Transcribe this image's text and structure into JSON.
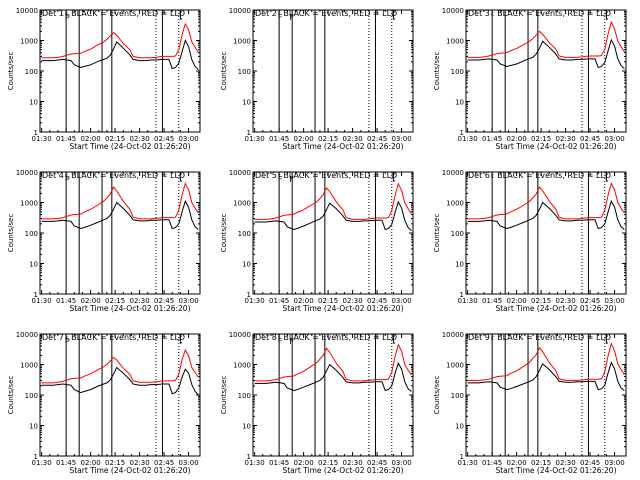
{
  "figure": {
    "ylabel": "Counts/sec",
    "xlabel": "Start Time (24-Oct-02 01:26:20)",
    "title_suffix": "BLACK = Events, RED = LLD"
  },
  "chart_data": [
    {
      "type": "line",
      "panel": 1,
      "title_prefix": "Det 1",
      "mode_char": "c",
      "segments": [
        "P"
      ],
      "x_ticks": [
        "01:30",
        "01:45",
        "02:00",
        "02:15",
        "02:30",
        "02:45",
        "03:00"
      ],
      "y_ticks": [
        "1",
        "10",
        "100",
        "1000",
        "10000"
      ],
      "ylim": [
        1,
        10000
      ],
      "ylog": true,
      "xlim_minutes": [
        -1,
        97
      ],
      "x_minutes": [
        0,
        7,
        10,
        13,
        18,
        20,
        24,
        26,
        30,
        34,
        38,
        40,
        42,
        44,
        46,
        50,
        54,
        56,
        60,
        64,
        67,
        70,
        74,
        78,
        80,
        82,
        84,
        86,
        88,
        90,
        92,
        94,
        96
      ],
      "series": [
        {
          "name": "Events",
          "color": "#000000",
          "values": [
            220,
            220,
            230,
            240,
            220,
            160,
            130,
            140,
            160,
            200,
            240,
            260,
            330,
            520,
            900,
            560,
            340,
            240,
            220,
            220,
            230,
            230,
            240,
            240,
            120,
            130,
            180,
            420,
            1000,
            620,
            240,
            140,
            110
          ]
        },
        {
          "name": "LLD",
          "color": "#ff0000",
          "values": [
            270,
            270,
            280,
            300,
            360,
            370,
            380,
            430,
            520,
            700,
            900,
            1100,
            1400,
            1800,
            1500,
            800,
            500,
            300,
            270,
            270,
            270,
            280,
            300,
            300,
            300,
            310,
            500,
            1500,
            3500,
            2200,
            900,
            600,
            400
          ]
        }
      ]
    },
    {
      "type": "line",
      "panel": 2,
      "title_prefix": "Det 2",
      "mode_char": "r",
      "segments": [
        "F",
        "F"
      ],
      "x_ticks": [
        "01:30",
        "01:45",
        "02:00",
        "02:15",
        "02:30",
        "02:45",
        "03:00"
      ],
      "y_ticks": [
        "1",
        "10",
        "100",
        "1000",
        "10000"
      ],
      "ylim": [
        1,
        10000
      ],
      "ylog": true,
      "xlim_minutes": [
        -1,
        97
      ],
      "x_minutes": [],
      "series": []
    },
    {
      "type": "line",
      "panel": 3,
      "title_prefix": "Det 3",
      "mode_char": "c",
      "segments": [],
      "x_ticks": [
        "01:30",
        "01:45",
        "02:00",
        "02:15",
        "02:30",
        "02:45",
        "03:00"
      ],
      "y_ticks": [
        "1",
        "10",
        "100",
        "1000",
        "10000"
      ],
      "ylim": [
        1,
        10000
      ],
      "ylog": true,
      "xlim_minutes": [
        -1,
        97
      ],
      "x_minutes": [
        0,
        7,
        10,
        13,
        18,
        20,
        24,
        26,
        30,
        34,
        38,
        40,
        42,
        44,
        46,
        50,
        54,
        56,
        60,
        64,
        67,
        70,
        74,
        78,
        80,
        82,
        84,
        86,
        88,
        90,
        92,
        94,
        96
      ],
      "series": [
        {
          "name": "Events",
          "color": "#000000",
          "values": [
            230,
            230,
            240,
            250,
            230,
            170,
            140,
            150,
            170,
            210,
            260,
            280,
            360,
            560,
            950,
            600,
            360,
            250,
            230,
            230,
            240,
            240,
            250,
            250,
            130,
            140,
            190,
            450,
            1050,
            650,
            250,
            150,
            120
          ]
        },
        {
          "name": "LLD",
          "color": "#ff0000",
          "values": [
            280,
            280,
            290,
            310,
            370,
            380,
            400,
            450,
            550,
            720,
            950,
            1150,
            1500,
            2000,
            1600,
            850,
            520,
            310,
            280,
            280,
            280,
            290,
            310,
            310,
            310,
            320,
            520,
            1600,
            4000,
            2400,
            950,
            620,
            420
          ]
        }
      ]
    },
    {
      "type": "line",
      "panel": 4,
      "title_prefix": "Det 4",
      "mode_char": "c",
      "segments": [
        "P"
      ],
      "x_ticks": [
        "01:30",
        "01:45",
        "02:00",
        "02:15",
        "02:30",
        "02:45",
        "03:00"
      ],
      "y_ticks": [
        "1",
        "10",
        "100",
        "1000",
        "10000"
      ],
      "ylim": [
        1,
        10000
      ],
      "ylog": true,
      "xlim_minutes": [
        -1,
        97
      ],
      "x_minutes": [
        0,
        7,
        10,
        13,
        18,
        20,
        24,
        26,
        30,
        34,
        38,
        40,
        42,
        44,
        46,
        50,
        54,
        56,
        60,
        64,
        67,
        70,
        74,
        78,
        80,
        82,
        84,
        86,
        88,
        90,
        92,
        94,
        96
      ],
      "series": [
        {
          "name": "Events",
          "color": "#000000",
          "values": [
            240,
            240,
            250,
            260,
            240,
            170,
            140,
            150,
            180,
            220,
            270,
            300,
            380,
            600,
            1000,
            640,
            380,
            270,
            250,
            250,
            260,
            260,
            270,
            270,
            140,
            150,
            200,
            480,
            1100,
            700,
            270,
            160,
            130
          ]
        },
        {
          "name": "LLD",
          "color": "#ff0000",
          "values": [
            290,
            290,
            300,
            320,
            390,
            400,
            420,
            480,
            600,
            800,
            1100,
            1400,
            1900,
            3200,
            2400,
            1100,
            600,
            330,
            290,
            290,
            290,
            300,
            320,
            320,
            320,
            330,
            560,
            1700,
            4200,
            2600,
            1000,
            650,
            450
          ]
        }
      ]
    },
    {
      "type": "line",
      "panel": 5,
      "title_prefix": "Det 5",
      "mode_char": "r",
      "segments": [
        "F",
        "F"
      ],
      "x_ticks": [
        "01:30",
        "01:45",
        "02:00",
        "02:15",
        "02:30",
        "02:45",
        "03:00"
      ],
      "y_ticks": [
        "1",
        "10",
        "100",
        "1000",
        "10000"
      ],
      "ylim": [
        1,
        10000
      ],
      "ylog": true,
      "xlim_minutes": [
        -1,
        97
      ],
      "x_minutes": [
        0,
        7,
        10,
        13,
        18,
        20,
        24,
        26,
        30,
        34,
        38,
        40,
        42,
        44,
        46,
        50,
        54,
        56,
        60,
        64,
        67,
        70,
        74,
        78,
        80,
        82,
        84,
        86,
        88,
        90,
        92,
        94,
        96
      ],
      "series": [
        {
          "name": "Events",
          "color": "#000000",
          "values": [
            230,
            230,
            240,
            250,
            230,
            160,
            130,
            140,
            170,
            210,
            260,
            290,
            360,
            580,
            950,
            620,
            370,
            260,
            240,
            240,
            250,
            250,
            260,
            260,
            130,
            140,
            190,
            460,
            1050,
            660,
            260,
            150,
            120
          ]
        },
        {
          "name": "LLD",
          "color": "#ff0000",
          "values": [
            280,
            280,
            290,
            310,
            380,
            390,
            410,
            470,
            580,
            780,
            1050,
            1350,
            1800,
            3000,
            2300,
            1050,
            580,
            320,
            280,
            280,
            280,
            290,
            310,
            310,
            310,
            320,
            540,
            1650,
            4100,
            2500,
            980,
            630,
            430
          ]
        }
      ]
    },
    {
      "type": "line",
      "panel": 6,
      "title_prefix": "Det 6",
      "mode_char": "c",
      "segments": [],
      "x_ticks": [
        "01:30",
        "01:45",
        "02:00",
        "02:15",
        "02:30",
        "02:45",
        "03:00"
      ],
      "y_ticks": [
        "1",
        "10",
        "100",
        "1000",
        "10000"
      ],
      "ylim": [
        1,
        10000
      ],
      "ylog": true,
      "xlim_minutes": [
        -1,
        97
      ],
      "x_minutes": [
        0,
        7,
        10,
        13,
        18,
        20,
        24,
        26,
        30,
        34,
        38,
        40,
        42,
        44,
        46,
        50,
        54,
        56,
        60,
        64,
        67,
        70,
        74,
        78,
        80,
        82,
        84,
        86,
        88,
        90,
        92,
        94,
        96
      ],
      "series": [
        {
          "name": "Events",
          "color": "#000000",
          "values": [
            240,
            240,
            250,
            260,
            240,
            170,
            140,
            150,
            180,
            220,
            270,
            300,
            380,
            600,
            1000,
            640,
            380,
            270,
            250,
            250,
            260,
            260,
            270,
            270,
            140,
            150,
            200,
            480,
            1100,
            700,
            270,
            160,
            130
          ]
        },
        {
          "name": "LLD",
          "color": "#ff0000",
          "values": [
            290,
            290,
            300,
            320,
            390,
            400,
            420,
            480,
            600,
            800,
            1100,
            1400,
            1900,
            3200,
            2400,
            1100,
            600,
            330,
            290,
            290,
            290,
            300,
            320,
            320,
            320,
            330,
            560,
            1700,
            4200,
            2600,
            1000,
            650,
            450
          ]
        }
      ]
    },
    {
      "type": "line",
      "panel": 7,
      "title_prefix": "Det 7",
      "mode_char": "c",
      "segments": [
        "P"
      ],
      "x_ticks": [
        "01:30",
        "01:45",
        "02:00",
        "02:15",
        "02:30",
        "02:45",
        "03:00"
      ],
      "y_ticks": [
        "1",
        "10",
        "100",
        "1000",
        "10000"
      ],
      "ylim": [
        1,
        10000
      ],
      "ylog": true,
      "xlim_minutes": [
        -1,
        97
      ],
      "x_minutes": [
        0,
        7,
        10,
        13,
        18,
        20,
        24,
        26,
        30,
        34,
        38,
        40,
        42,
        44,
        46,
        50,
        54,
        56,
        60,
        64,
        67,
        70,
        74,
        78,
        80,
        82,
        84,
        86,
        88,
        90,
        92,
        94,
        96
      ],
      "series": [
        {
          "name": "Events",
          "color": "#000000",
          "values": [
            210,
            210,
            220,
            230,
            210,
            150,
            120,
            130,
            150,
            190,
            230,
            250,
            310,
            480,
            800,
            520,
            320,
            230,
            210,
            210,
            220,
            220,
            230,
            230,
            110,
            120,
            170,
            380,
            700,
            520,
            220,
            130,
            100
          ]
        },
        {
          "name": "LLD",
          "color": "#ff0000",
          "values": [
            250,
            250,
            260,
            280,
            340,
            350,
            360,
            410,
            500,
            650,
            850,
            1000,
            1300,
            1700,
            1400,
            750,
            480,
            290,
            260,
            260,
            260,
            270,
            290,
            290,
            290,
            300,
            480,
            1400,
            3000,
            1900,
            800,
            550,
            380
          ]
        }
      ]
    },
    {
      "type": "line",
      "panel": 8,
      "title_prefix": "Det 8",
      "mode_char": "r",
      "segments": [
        "F",
        "F"
      ],
      "x_ticks": [
        "01:30",
        "01:45",
        "02:00",
        "02:15",
        "02:30",
        "02:45",
        "03:00"
      ],
      "y_ticks": [
        "1",
        "10",
        "100",
        "1000",
        "10000"
      ],
      "ylim": [
        1,
        10000
      ],
      "ylog": true,
      "xlim_minutes": [
        -1,
        97
      ],
      "x_minutes": [
        0,
        7,
        10,
        13,
        18,
        20,
        24,
        26,
        30,
        34,
        38,
        40,
        42,
        44,
        46,
        50,
        54,
        56,
        60,
        64,
        67,
        70,
        74,
        78,
        80,
        82,
        84,
        86,
        88,
        90,
        92,
        94,
        96
      ],
      "series": [
        {
          "name": "Events",
          "color": "#000000",
          "values": [
            240,
            240,
            250,
            260,
            240,
            170,
            140,
            150,
            180,
            220,
            270,
            300,
            380,
            620,
            1000,
            640,
            380,
            270,
            250,
            250,
            260,
            260,
            270,
            270,
            140,
            150,
            200,
            500,
            1100,
            700,
            270,
            160,
            130
          ]
        },
        {
          "name": "LLD",
          "color": "#ff0000",
          "values": [
            290,
            290,
            300,
            320,
            390,
            400,
            420,
            480,
            600,
            820,
            1150,
            1500,
            2000,
            3400,
            2500,
            1100,
            600,
            330,
            290,
            290,
            290,
            300,
            320,
            320,
            320,
            330,
            560,
            1800,
            4500,
            2700,
            1000,
            650,
            450
          ]
        }
      ]
    },
    {
      "type": "line",
      "panel": 9,
      "title_prefix": "Det 9",
      "mode_char": "c",
      "segments": [],
      "x_ticks": [
        "01:30",
        "01:45",
        "02:00",
        "02:15",
        "02:30",
        "02:45",
        "03:00"
      ],
      "y_ticks": [
        "1",
        "10",
        "100",
        "1000",
        "10000"
      ],
      "ylim": [
        1,
        10000
      ],
      "ylog": true,
      "xlim_minutes": [
        -1,
        97
      ],
      "x_minutes": [
        0,
        7,
        10,
        13,
        18,
        20,
        24,
        26,
        30,
        34,
        38,
        40,
        42,
        44,
        46,
        50,
        54,
        56,
        60,
        64,
        67,
        70,
        74,
        78,
        80,
        82,
        84,
        86,
        88,
        90,
        92,
        94,
        96
      ],
      "series": [
        {
          "name": "Events",
          "color": "#000000",
          "values": [
            250,
            250,
            260,
            270,
            250,
            180,
            150,
            160,
            190,
            230,
            280,
            310,
            400,
            640,
            1050,
            680,
            400,
            280,
            260,
            260,
            270,
            270,
            280,
            280,
            150,
            160,
            210,
            520,
            1150,
            720,
            280,
            170,
            140
          ]
        },
        {
          "name": "LLD",
          "color": "#ff0000",
          "values": [
            300,
            300,
            310,
            330,
            400,
            410,
            430,
            500,
            620,
            850,
            1200,
            1600,
            2100,
            3500,
            2600,
            1150,
            620,
            340,
            300,
            300,
            300,
            310,
            330,
            330,
            330,
            340,
            580,
            1900,
            4800,
            2800,
            1050,
            680,
            470
          ]
        }
      ]
    }
  ]
}
